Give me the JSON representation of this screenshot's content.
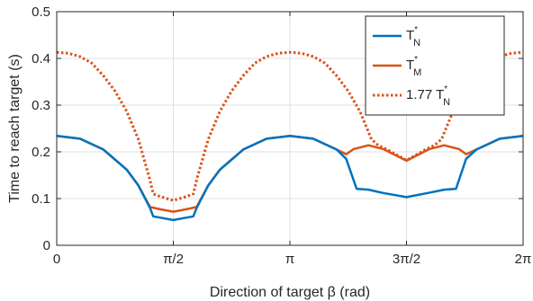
{
  "chart_data": {
    "type": "line",
    "xlabel": "Direction of target β (rad)",
    "ylabel": "Time to reach target (s)",
    "xlim": [
      0,
      6.283185
    ],
    "ylim": [
      0,
      0.5
    ],
    "grid": true,
    "legend_position": "top-right",
    "x_ticks": [
      {
        "value": 0,
        "label": "0"
      },
      {
        "value": 1.570796,
        "label": "π/2"
      },
      {
        "value": 3.141593,
        "label": "π"
      },
      {
        "value": 4.712389,
        "label": "3π/2"
      },
      {
        "value": 6.283185,
        "label": "2π"
      }
    ],
    "y_ticks": [
      {
        "value": 0,
        "label": "0"
      },
      {
        "value": 0.1,
        "label": "0.1"
      },
      {
        "value": 0.2,
        "label": "0.2"
      },
      {
        "value": 0.3,
        "label": "0.3"
      },
      {
        "value": 0.4,
        "label": "0.4"
      },
      {
        "value": 0.5,
        "label": "0.5"
      }
    ],
    "series": [
      {
        "legend_label": "T",
        "legend_sup": "*",
        "legend_sub": "N",
        "color": "#0072BD",
        "style": "solid",
        "points": [
          [
            0.0,
            0.234
          ],
          [
            0.314,
            0.228
          ],
          [
            0.628,
            0.205
          ],
          [
            0.942,
            0.162
          ],
          [
            1.1,
            0.128
          ],
          [
            1.257,
            0.08
          ],
          [
            1.3,
            0.062
          ],
          [
            1.4,
            0.059
          ],
          [
            1.571,
            0.054
          ],
          [
            1.741,
            0.059
          ],
          [
            1.84,
            0.062
          ],
          [
            1.885,
            0.08
          ],
          [
            2.042,
            0.128
          ],
          [
            2.199,
            0.162
          ],
          [
            2.513,
            0.205
          ],
          [
            2.827,
            0.228
          ],
          [
            3.142,
            0.234
          ],
          [
            3.456,
            0.228
          ],
          [
            3.77,
            0.205
          ],
          [
            3.9,
            0.185
          ],
          [
            4.04,
            0.121
          ],
          [
            4.2,
            0.119
          ],
          [
            4.4,
            0.112
          ],
          [
            4.712,
            0.103
          ],
          [
            5.0,
            0.112
          ],
          [
            5.22,
            0.119
          ],
          [
            5.38,
            0.121
          ],
          [
            5.515,
            0.185
          ],
          [
            5.655,
            0.205
          ],
          [
            5.969,
            0.228
          ],
          [
            6.283,
            0.234
          ]
        ]
      },
      {
        "legend_label": "T",
        "legend_sup": "*",
        "legend_sub": "M",
        "color": "#D95319",
        "style": "solid",
        "points": [
          [
            0.0,
            0.234
          ],
          [
            0.314,
            0.228
          ],
          [
            0.628,
            0.205
          ],
          [
            0.942,
            0.162
          ],
          [
            1.1,
            0.128
          ],
          [
            1.257,
            0.082
          ],
          [
            1.4,
            0.077
          ],
          [
            1.571,
            0.072
          ],
          [
            1.741,
            0.077
          ],
          [
            1.885,
            0.082
          ],
          [
            2.042,
            0.128
          ],
          [
            2.199,
            0.162
          ],
          [
            2.513,
            0.205
          ],
          [
            2.827,
            0.228
          ],
          [
            3.142,
            0.234
          ],
          [
            3.456,
            0.228
          ],
          [
            3.77,
            0.205
          ],
          [
            3.9,
            0.195
          ],
          [
            4.0,
            0.206
          ],
          [
            4.2,
            0.214
          ],
          [
            4.4,
            0.206
          ],
          [
            4.712,
            0.181
          ],
          [
            5.02,
            0.206
          ],
          [
            5.22,
            0.214
          ],
          [
            5.42,
            0.206
          ],
          [
            5.515,
            0.195
          ],
          [
            5.655,
            0.205
          ],
          [
            5.969,
            0.228
          ],
          [
            6.283,
            0.234
          ]
        ]
      },
      {
        "legend_label": "1.77 T",
        "legend_sup": "*",
        "legend_sub": "N",
        "color": "#D95319",
        "style": "dotted",
        "points": [
          [
            0.0,
            0.413
          ],
          [
            0.157,
            0.411
          ],
          [
            0.314,
            0.404
          ],
          [
            0.471,
            0.39
          ],
          [
            0.628,
            0.363
          ],
          [
            0.785,
            0.33
          ],
          [
            0.942,
            0.287
          ],
          [
            1.1,
            0.227
          ],
          [
            1.25,
            0.143
          ],
          [
            1.3,
            0.11
          ],
          [
            1.4,
            0.104
          ],
          [
            1.571,
            0.096
          ],
          [
            1.741,
            0.104
          ],
          [
            1.84,
            0.11
          ],
          [
            1.89,
            0.143
          ],
          [
            2.042,
            0.227
          ],
          [
            2.199,
            0.287
          ],
          [
            2.356,
            0.33
          ],
          [
            2.513,
            0.363
          ],
          [
            2.67,
            0.39
          ],
          [
            2.827,
            0.404
          ],
          [
            2.985,
            0.411
          ],
          [
            3.142,
            0.413
          ],
          [
            3.299,
            0.411
          ],
          [
            3.456,
            0.404
          ],
          [
            3.613,
            0.39
          ],
          [
            3.77,
            0.363
          ],
          [
            3.927,
            0.33
          ],
          [
            4.084,
            0.287
          ],
          [
            4.241,
            0.227
          ],
          [
            4.33,
            0.214
          ],
          [
            4.45,
            0.205
          ],
          [
            4.712,
            0.182
          ],
          [
            4.97,
            0.205
          ],
          [
            5.09,
            0.214
          ],
          [
            5.184,
            0.227
          ],
          [
            5.341,
            0.287
          ],
          [
            5.498,
            0.33
          ],
          [
            5.655,
            0.363
          ],
          [
            5.812,
            0.39
          ],
          [
            5.969,
            0.404
          ],
          [
            6.126,
            0.411
          ],
          [
            6.283,
            0.413
          ]
        ]
      }
    ]
  }
}
